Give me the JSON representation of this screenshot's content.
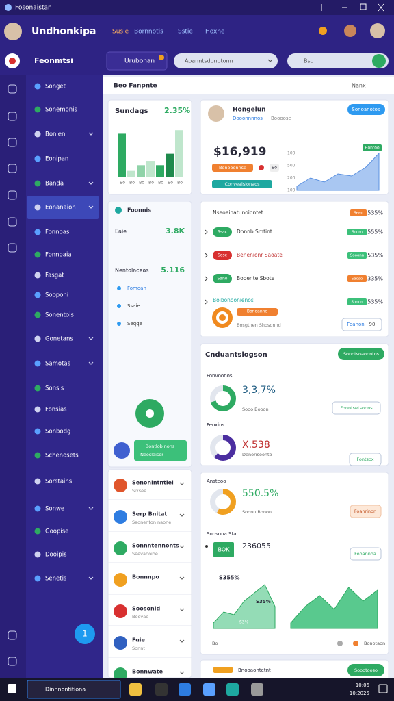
{
  "window": {
    "title": "Fosonaistan"
  },
  "header": {
    "brand": "Undhonkipa",
    "nav": [
      "Susie",
      "Bornnotis",
      "Sstie",
      "Hoxne"
    ]
  },
  "toolbar": {
    "section": "Feonmtsi",
    "tab": "Urubonan",
    "dropdown": "Aoanntsdonotonn",
    "search": "Bsd"
  },
  "sidebar": {
    "items": [
      "Songet",
      "Sonemonis",
      "Bonlen",
      "Eonipan",
      "Banda",
      "Eonanaion",
      "Fonnoas",
      "Fonnoaia",
      "Fasgat",
      "Sooponi",
      "Sonentois",
      "Gonetans",
      "Samotas",
      "Sonsis",
      "Fonsias",
      "Sonbodg",
      "Schenosets",
      "Sorstains",
      "Sonwe",
      "Goopise",
      "Dooipis",
      "Senetis"
    ],
    "badge": "1"
  },
  "page": {
    "heading": "Beo Fanpnte",
    "action": "Nanx"
  },
  "card_bars": {
    "title": "Sundags",
    "value": "2.35%",
    "values": [
      6,
      0.8,
      1.6,
      2.2,
      1.6,
      3.2,
      6.5
    ],
    "colors": [
      "#2eaa62",
      "#bfe6cc",
      "#8fd3a8",
      "#bfe6cc",
      "#2eaa62",
      "#1e8a4c",
      "#bfe6cc"
    ],
    "ylim": [
      0,
      7
    ],
    "xlabels": [
      "Bo",
      "Bo",
      "Bo",
      "Bo",
      "Bo",
      "Bo",
      "Bo"
    ]
  },
  "card_profile": {
    "name": "Hongelun",
    "role": "Dooonnnnos",
    "meta": "Boooose",
    "button": "Sonoanotos",
    "amount": "$16,919",
    "tag1": "Bonooonnse",
    "tag2": "Bo",
    "chip": "Conveaisionaos",
    "badge": "Bontoo",
    "yaxis": [
      "100",
      "500",
      "200",
      "100"
    ],
    "values": [
      1,
      3,
      2,
      4,
      3.5,
      5.5,
      9
    ],
    "ylim": [
      0,
      10
    ],
    "color": "#a9c7f2"
  },
  "card_stats": {
    "title": "Foonnis",
    "rows": [
      [
        "Eaie",
        "3.8K"
      ],
      [
        "Nentolaceas",
        "5.116"
      ]
    ],
    "links": [
      "Fomoan",
      "Ssaie",
      "Seqqe"
    ],
    "banner": [
      "Bontlobinons",
      "Neoslaisor"
    ]
  },
  "card_list": {
    "rows": [
      [
        "Senonintntiel",
        "Sixsee"
      ],
      [
        "Serp Bnitat",
        "Saonenton naone"
      ],
      [
        "Sonnntennonts",
        "Seevanoioe"
      ],
      [
        "Bonnnpo",
        ""
      ],
      [
        "Soosonid",
        "Beovae"
      ],
      [
        "Fuie",
        "Sonnt"
      ],
      [
        "Bonnwate",
        ""
      ]
    ],
    "colors": [
      "#e0552b",
      "#2f7de1",
      "#2eaa62",
      "#f0a020",
      "#d83030",
      "#3060c0",
      "#2eaa62"
    ]
  },
  "card_tasks": {
    "header": "Nseoeinatunoiontet",
    "header_badge": "Seeo",
    "header_pct": "535%",
    "rows": [
      [
        "Ssac",
        "Donnb Smtint",
        "Soorn",
        "555%"
      ],
      [
        "Sosc",
        "Benenionr Saoate",
        "Sooonn",
        "535%"
      ],
      [
        "Sano",
        "Booente Sbote",
        "Saoso",
        "335%"
      ],
      [
        "Boibonoonienos",
        "",
        "Sonon",
        "535%"
      ]
    ],
    "pill_colors": [
      "#2eaa62",
      "#d83030",
      "#2eaa62",
      "#2eaa62"
    ],
    "footer": [
      "Bonoanne",
      "Bosgtnen Shosonnd"
    ],
    "button": "Foanon",
    "count": "90"
  },
  "card_donuts": {
    "title": "Cnduantslogson",
    "button": "Sonotsoaonntos",
    "items": [
      {
        "label": "Fonvoonos",
        "value": "3,3,7%",
        "sub": "Sooo Booon",
        "button": "Fonntsetsonns",
        "percent": 70,
        "color": "#2eaa62"
      },
      {
        "label": "Feoxins",
        "value": "X.538",
        "sub": "Denorisoonto",
        "button": "Fontsox",
        "percent": 62,
        "color": "#4b2ea0"
      }
    ]
  },
  "card_area": {
    "label": "Ansteoo",
    "value": "550.5%",
    "sub": "Soonn Bonon",
    "button": "Foanrinon",
    "percent": 58,
    "label2": "Sonsona Sta",
    "tag": "BOK",
    "value2": "236055",
    "button2": "Fooannoa",
    "ann1": "S355%",
    "ann2": "S35%",
    "ann3": "S3%",
    "left": [
      1,
      3,
      2.5,
      5,
      6.5,
      8,
      4
    ],
    "right": [
      1,
      4,
      6,
      3.5,
      7.5,
      5,
      7
    ],
    "ylim": [
      0,
      10
    ],
    "color": "#3cc07a",
    "legend": [
      "Bo",
      "Bonotaon"
    ]
  },
  "footer_card": {
    "label": "Bnooaontetnt",
    "button": "Soootooso"
  },
  "taskbar": {
    "search": "Dinnnontitiona",
    "time": "10:06",
    "date": "10:2025"
  }
}
